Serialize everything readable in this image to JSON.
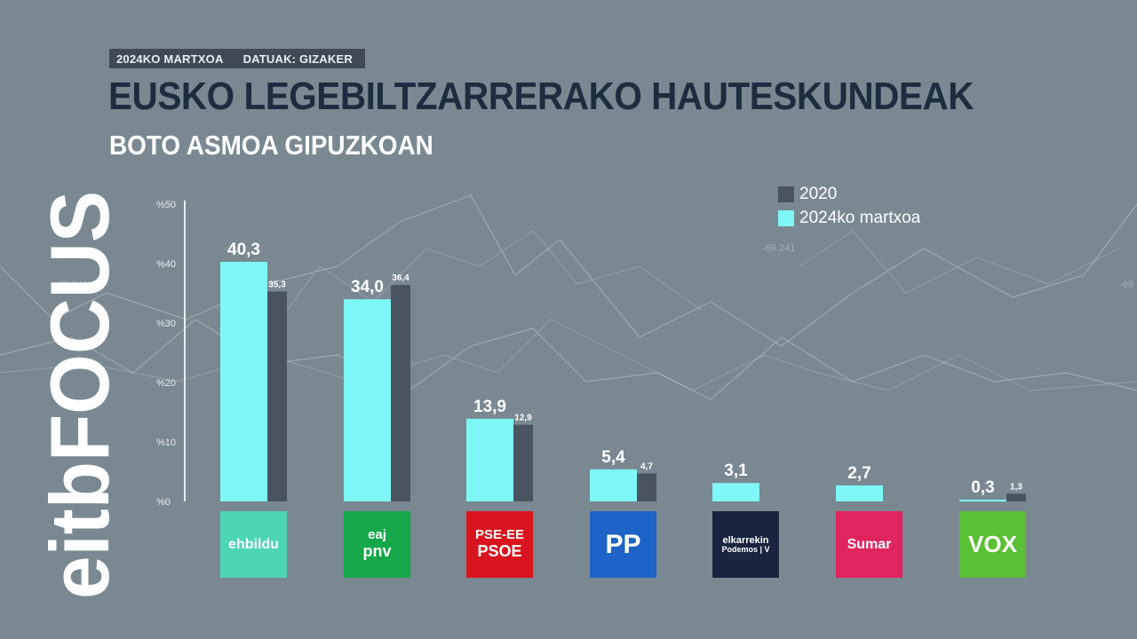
{
  "header": {
    "date_tag": "2024KO MARTXOA",
    "source_tag": "DATUAK: GIZAKER",
    "title": "EUSKO LEGEBILTZARRERAKO HAUTESKUNDEAK",
    "subtitle": "BOTO ASMOA GIPUZKOAN"
  },
  "brand": {
    "name": "eitbFOCUS"
  },
  "background": {
    "decor_numbers": [
      "-69.241",
      "-69.241",
      "-69"
    ]
  },
  "colors": {
    "background": "#7a8891",
    "series_2020": "#4a5360",
    "series_2024": "#7ff7f7",
    "title": "#1d2c40",
    "text_light": "#ffffff"
  },
  "legend": [
    {
      "label": "2020",
      "color": "#4a5360"
    },
    {
      "label": "2024ko martxoa",
      "color": "#7ff7f7"
    }
  ],
  "parties": [
    {
      "name": "EH Bildu",
      "logo_text": [
        "ehbildu"
      ],
      "logo_color": "#4ed6b4",
      "logo_text_color": "#ffffff",
      "icon": "ehbildu-logo"
    },
    {
      "name": "EAJ-PNV",
      "logo_text": [
        "eaj",
        "pnv"
      ],
      "logo_color": "#15a74a",
      "logo_text_color": "#ffffff",
      "icon": "pnv-logo"
    },
    {
      "name": "PSE-EE PSOE",
      "logo_text": [
        "PSE-EE",
        "PSOE"
      ],
      "logo_color": "#d9141e",
      "logo_text_color": "#ffffff",
      "icon": "psoe-logo"
    },
    {
      "name": "PP",
      "logo_text": [
        "PP"
      ],
      "logo_color": "#1e64c8",
      "logo_text_color": "#ffffff",
      "icon": "pp-logo"
    },
    {
      "name": "Elkarrekin Podemos",
      "logo_text": [
        "elkarrekin",
        "Podemos | V"
      ],
      "logo_color": "#1a2440",
      "logo_text_color": "#ffffff",
      "icon": "elkarrekin-logo"
    },
    {
      "name": "Sumar",
      "logo_text": [
        "Sumar"
      ],
      "logo_color": "#e0245e",
      "logo_text_color": "#ffffff",
      "icon": "sumar-logo"
    },
    {
      "name": "VOX",
      "logo_text": [
        "VOX"
      ],
      "logo_color": "#5ac034",
      "logo_text_color": "#ffffff",
      "icon": "vox-logo"
    }
  ],
  "chart_data": {
    "type": "bar",
    "categories": [
      "EH Bildu",
      "EAJ-PNV",
      "PSE-EE PSOE",
      "PP",
      "Elkarrekin Podemos",
      "Sumar",
      "VOX"
    ],
    "series": [
      {
        "name": "2024ko martxoa",
        "values": [
          40.3,
          34.0,
          13.9,
          5.4,
          3.1,
          2.7,
          0.3
        ],
        "labels": [
          "40,3",
          "34,0",
          "13,9",
          "5,4",
          "3,1",
          "2,7",
          "0,3"
        ]
      },
      {
        "name": "2020",
        "values": [
          35.3,
          36.4,
          12.9,
          4.7,
          null,
          null,
          1.3
        ],
        "labels": [
          "35,3",
          "36,4",
          "12,9",
          "4,7",
          "",
          "",
          "1,3"
        ]
      }
    ],
    "yticks": [
      "%0",
      "%10",
      "%20",
      "%30",
      "%40",
      "%50"
    ],
    "ylim": [
      0,
      50
    ],
    "grid": false,
    "legend_position": "top-right"
  }
}
